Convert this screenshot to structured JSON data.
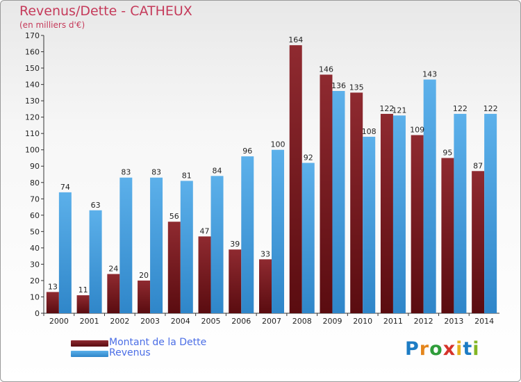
{
  "header": {
    "title": "Revenus/Dette - CATHEUX",
    "subtitle": "(en milliers d'€)"
  },
  "colors": {
    "dette": "#7a1c22",
    "dette_light": "#8f2a30",
    "revenus": "#4aa3e2",
    "title": "#c53a5a",
    "legend_text": "#4b6ee6"
  },
  "chart_data": {
    "type": "bar",
    "title": "Revenus/Dette - CATHEUX",
    "subtitle": "(en milliers d'€)",
    "categories": [
      "2000",
      "2001",
      "2002",
      "2003",
      "2004",
      "2005",
      "2006",
      "2007",
      "2008",
      "2009",
      "2010",
      "2011",
      "2012",
      "2013",
      "2014"
    ],
    "series": [
      {
        "name": "Montant de la Dette",
        "values": [
          13,
          11,
          24,
          20,
          56,
          47,
          39,
          33,
          164,
          146,
          135,
          122,
          109,
          95,
          87
        ]
      },
      {
        "name": "Revenus",
        "values": [
          74,
          63,
          83,
          83,
          81,
          84,
          96,
          100,
          92,
          136,
          108,
          121,
          143,
          122,
          122
        ]
      }
    ],
    "ylim": [
      0,
      170
    ],
    "yticks": [
      0,
      10,
      20,
      30,
      40,
      50,
      60,
      70,
      80,
      90,
      100,
      110,
      120,
      130,
      140,
      150,
      160,
      170
    ],
    "grid": false,
    "legend_position": "bottom-left"
  },
  "legend": {
    "items": [
      {
        "label": "Montant de la Dette"
      },
      {
        "label": "Revenus"
      }
    ]
  },
  "logo": {
    "letters": [
      {
        "char": "P",
        "color": "#1d7cc4"
      },
      {
        "char": "r",
        "color": "#e4861d"
      },
      {
        "char": "o",
        "color": "#2f9d3a"
      },
      {
        "char": "x",
        "color": "#d6332a"
      },
      {
        "char": "i",
        "color": "#e4b21d"
      },
      {
        "char": "t",
        "color": "#1d7cc4"
      },
      {
        "char": "i",
        "color": "#83b625"
      }
    ],
    "text": "Proxiti"
  }
}
